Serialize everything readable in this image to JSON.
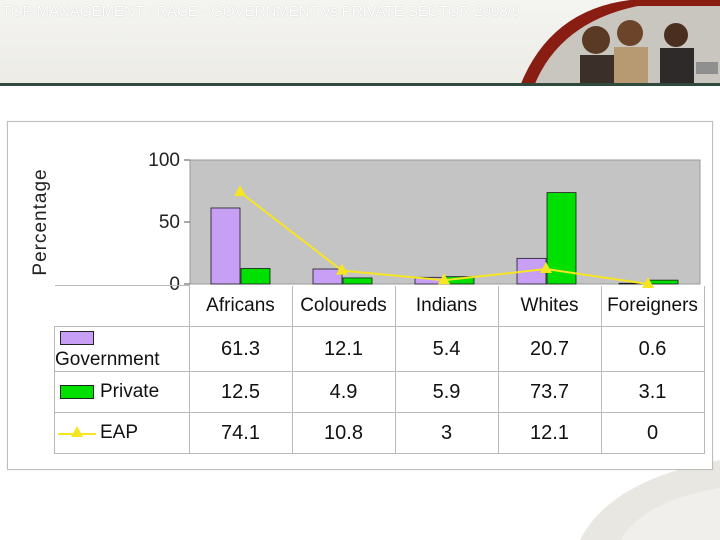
{
  "header": {
    "title": "TOP MANAGEMENT : RACE - GOVERNMENT vs PRIVATE SECTOR 2008/9"
  },
  "colors": {
    "government": "#c79ff5",
    "private": "#00e000",
    "eap": "#f5e621",
    "plot_bg": "#c4c4c4",
    "header_bar": "#2f4a3d"
  },
  "chart_data": {
    "type": "bar",
    "ylabel": "Percentage",
    "ylim": [
      0,
      100
    ],
    "yticks": [
      "100",
      "50",
      "0"
    ],
    "yticks_values": [
      100,
      50,
      0
    ],
    "grid": false,
    "legend": "data table below plot",
    "categories": [
      "Africans",
      "Coloureds",
      "Indians",
      "Whites",
      "Foreigners"
    ],
    "series": [
      {
        "name": "Government",
        "kind": "bar",
        "values": [
          61.3,
          12.1,
          5.4,
          20.7,
          0.6
        ]
      },
      {
        "name": "Private",
        "kind": "bar",
        "values": [
          12.5,
          4.9,
          5.9,
          73.7,
          3.1
        ]
      },
      {
        "name": "EAP",
        "kind": "line",
        "values": [
          74.1,
          10.8,
          3,
          12.1,
          0
        ]
      }
    ],
    "table": {
      "government": [
        "61.3",
        "12.1",
        "5.4",
        "20.7",
        "0.6"
      ],
      "private": [
        "12.5",
        "4.9",
        "5.9",
        "73.7",
        "3.1"
      ],
      "eap": [
        "74.1",
        "10.8",
        "3",
        "12.1",
        "0"
      ]
    }
  }
}
